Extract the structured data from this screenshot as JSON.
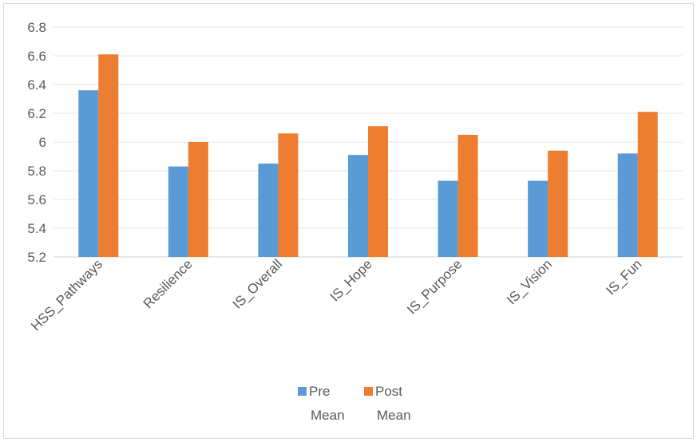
{
  "chart_data": {
    "type": "bar",
    "categories": [
      "HSS_Pathways",
      "Resilience",
      "IS_Overall",
      "IS_Hope",
      "IS_Purpose",
      "IS_Vision",
      "IS_Fun"
    ],
    "series": [
      {
        "name": "Pre Mean",
        "legend_lines": [
          "Pre",
          "Mean"
        ],
        "color": "#5b9bd5",
        "values": [
          6.36,
          5.83,
          5.85,
          5.91,
          5.73,
          5.73,
          5.92
        ]
      },
      {
        "name": "Post Mean",
        "legend_lines": [
          "Post",
          "Mean"
        ],
        "color": "#ed7d31",
        "values": [
          6.61,
          6.0,
          6.06,
          6.11,
          6.05,
          5.94,
          6.21
        ]
      }
    ],
    "yticks": [
      "5.2",
      "5.4",
      "5.6",
      "5.8",
      "6",
      "6.2",
      "6.4",
      "6.6",
      "6.8"
    ],
    "ylim": [
      5.2,
      6.8
    ],
    "grid": true,
    "legend_position": "bottom",
    "title": "",
    "xlabel": "",
    "ylabel": ""
  }
}
